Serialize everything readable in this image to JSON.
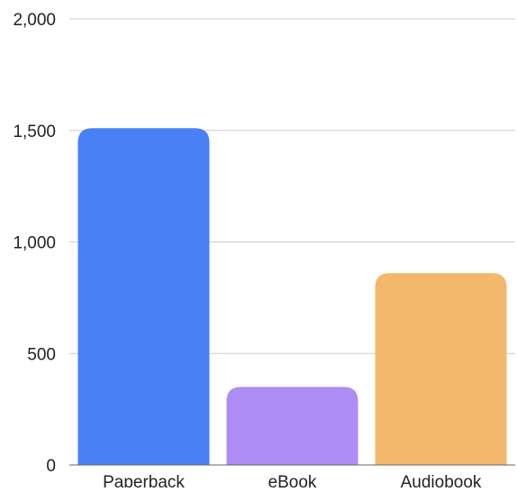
{
  "chart_data": {
    "type": "bar",
    "categories": [
      "Paperback",
      "eBook",
      "Audiobook"
    ],
    "values": [
      1510,
      350,
      860
    ],
    "colors": [
      "#4a80f5",
      "#ad8cf3",
      "#f3b86b"
    ],
    "yticks": [
      "0",
      "500",
      "1,000",
      "1,500",
      "2,000"
    ],
    "ytick_values": [
      0,
      500,
      1000,
      1500,
      2000
    ],
    "ylim": [
      0,
      2000
    ],
    "grid": true,
    "gridline_color": "#cccccc",
    "axis_color": "#666666",
    "title": "",
    "xlabel": "",
    "ylabel": ""
  }
}
